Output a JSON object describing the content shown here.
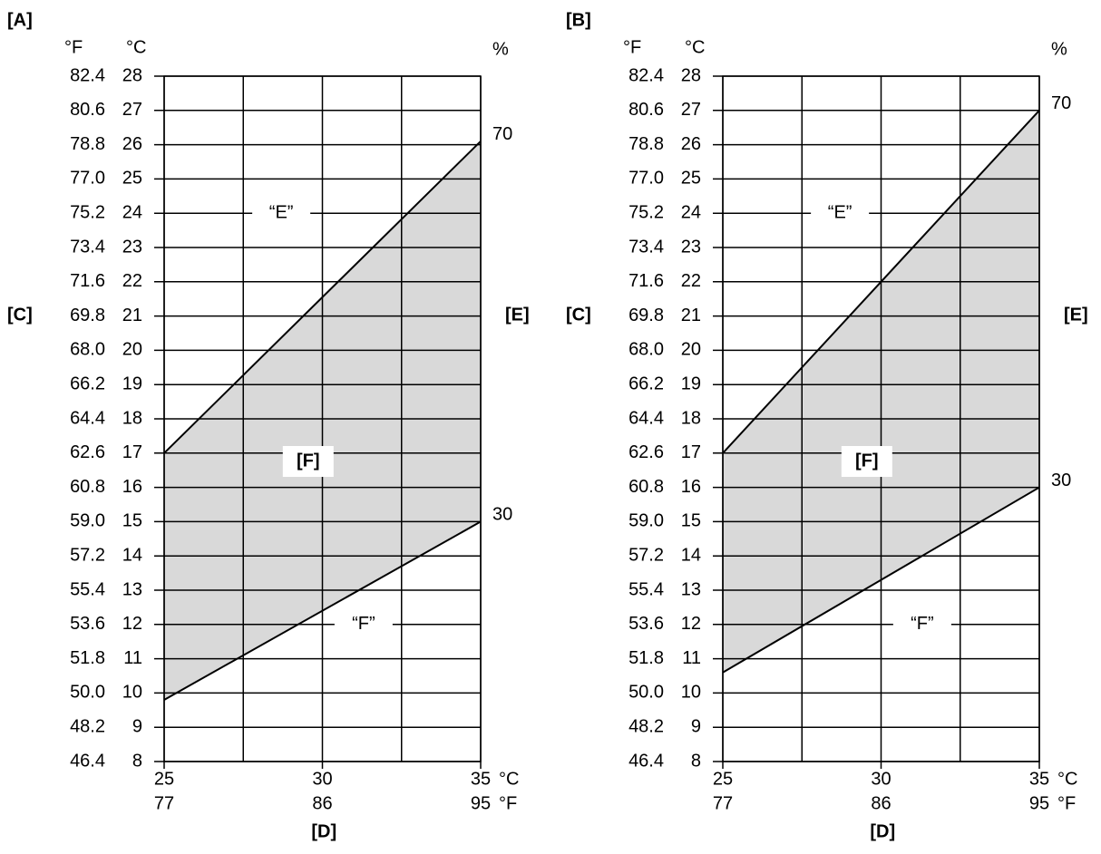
{
  "chart_data": [
    {
      "type": "line",
      "panel_label": "[A]",
      "y_label": "[C]",
      "right_label": "[E]",
      "x_label": "[D]",
      "band_label": "[F]",
      "y_unit": "°C",
      "y2_unit": "°F",
      "right_unit": "%",
      "x_unit": "°C",
      "x2_unit": "°F",
      "x": [
        25,
        35
      ],
      "xlim": [
        25,
        35
      ],
      "xticks": [
        25,
        30,
        35
      ],
      "xminor": [
        27.5,
        32.5
      ],
      "x2lim": [
        77,
        95
      ],
      "x2ticks": [
        77,
        86,
        95
      ],
      "ylim": [
        8,
        28
      ],
      "yticks": [
        8,
        9,
        10,
        11,
        12,
        13,
        14,
        15,
        16,
        17,
        18,
        19,
        20,
        21,
        22,
        23,
        24,
        25,
        26,
        27,
        28
      ],
      "y2lim": [
        46.4,
        82.4
      ],
      "y2ticks": [
        46.4,
        48.2,
        {
          "value": 50,
          "label": "50.0"
        },
        51.8,
        53.6,
        55.4,
        57.2,
        {
          "value": 59,
          "label": "59.0"
        },
        60.8,
        62.6,
        64.4,
        66.2,
        {
          "value": 68,
          "label": "68.0"
        },
        69.8,
        71.6,
        73.4,
        75.2,
        {
          "value": 77,
          "label": "77.0"
        },
        78.8,
        80.6,
        82.4
      ],
      "grid": true,
      "fill": "#d9d9d9",
      "series": [
        {
          "name": "70",
          "line_label": "“E”",
          "color": "#000000",
          "values": [
            17,
            26.1
          ]
        },
        {
          "name": "30",
          "line_label": "“F”",
          "color": "#000000",
          "values": [
            9.8,
            15
          ]
        }
      ]
    },
    {
      "type": "line",
      "panel_label": "[B]",
      "y_label": "[C]",
      "right_label": "[E]",
      "x_label": "[D]",
      "band_label": "[F]",
      "y_unit": "°C",
      "y2_unit": "°F",
      "right_unit": "%",
      "x_unit": "°C",
      "x2_unit": "°F",
      "x": [
        25,
        35
      ],
      "xlim": [
        25,
        35
      ],
      "xticks": [
        25,
        30,
        35
      ],
      "xminor": [
        27.5,
        32.5
      ],
      "x2lim": [
        77,
        95
      ],
      "x2ticks": [
        77,
        86,
        95
      ],
      "ylim": [
        8,
        28
      ],
      "yticks": [
        8,
        9,
        10,
        11,
        12,
        13,
        14,
        15,
        16,
        17,
        18,
        19,
        20,
        21,
        22,
        23,
        24,
        25,
        26,
        27,
        28
      ],
      "y2lim": [
        46.4,
        82.4
      ],
      "y2ticks": [
        46.4,
        48.2,
        {
          "value": 50,
          "label": "50.0"
        },
        51.8,
        53.6,
        55.4,
        57.2,
        {
          "value": 59,
          "label": "59.0"
        },
        60.8,
        62.6,
        64.4,
        66.2,
        {
          "value": 68,
          "label": "68.0"
        },
        69.8,
        71.6,
        73.4,
        75.2,
        {
          "value": 77,
          "label": "77.0"
        },
        78.8,
        80.6,
        82.4
      ],
      "grid": true,
      "fill": "#d9d9d9",
      "series": [
        {
          "name": "70",
          "line_label": "“E”",
          "color": "#000000",
          "values": [
            17,
            27
          ]
        },
        {
          "name": "30",
          "line_label": "“F”",
          "color": "#000000",
          "values": [
            10.6,
            16
          ]
        }
      ]
    }
  ]
}
